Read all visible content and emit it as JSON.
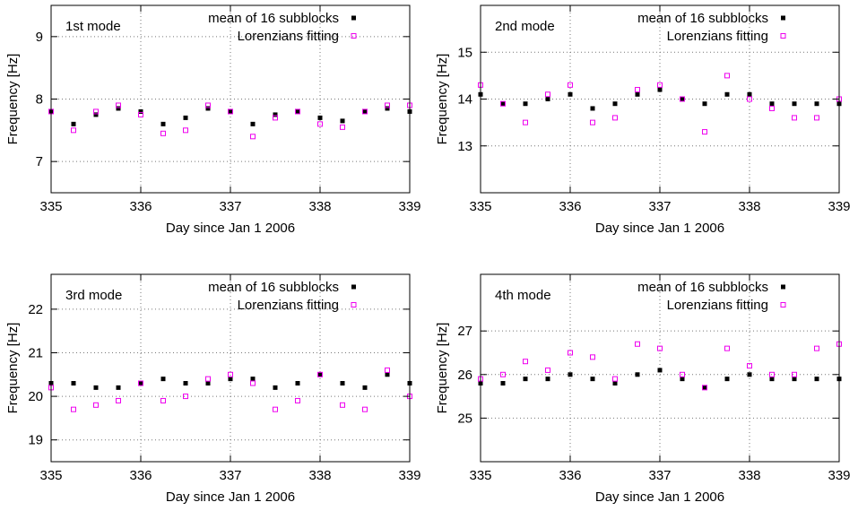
{
  "colors": {
    "mean": "#000000",
    "lorentz": "#ee00ee",
    "grid": "#777777",
    "frame": "#000000"
  },
  "chart_data": [
    {
      "type": "scatter",
      "title": "1st mode",
      "xlabel": "Day since Jan 1 2006",
      "ylabel": "Frequency [Hz]",
      "xlim": [
        335,
        339
      ],
      "ylim": [
        6.5,
        9.5
      ],
      "xticks": [
        335,
        336,
        337,
        338,
        339
      ],
      "yticks": [
        7,
        8,
        9
      ],
      "grid": true,
      "legend_position": "top-right",
      "legend": [
        "mean of 16 subblocks",
        "Lorenzians fitting"
      ],
      "series": [
        {
          "name": "mean of 16 subblocks",
          "marker": "filled-square",
          "x": [
            335.0,
            335.25,
            335.5,
            335.75,
            336.0,
            336.25,
            336.5,
            336.75,
            337.0,
            337.25,
            337.5,
            337.75,
            338.0,
            338.25,
            338.5,
            338.75,
            339.0
          ],
          "y": [
            7.8,
            7.6,
            7.75,
            7.85,
            7.8,
            7.6,
            7.7,
            7.85,
            7.8,
            7.6,
            7.75,
            7.8,
            7.7,
            7.65,
            7.8,
            7.85,
            7.8
          ]
        },
        {
          "name": "Lorenzians fitting",
          "marker": "open-square",
          "x": [
            335.0,
            335.25,
            335.5,
            335.75,
            336.0,
            336.25,
            336.5,
            336.75,
            337.0,
            337.25,
            337.5,
            337.75,
            338.0,
            338.25,
            338.5,
            338.75,
            339.0
          ],
          "y": [
            7.8,
            7.5,
            7.8,
            7.9,
            7.75,
            7.45,
            7.5,
            7.9,
            7.8,
            7.4,
            7.7,
            7.8,
            7.6,
            7.55,
            7.8,
            7.9,
            7.9
          ]
        }
      ]
    },
    {
      "type": "scatter",
      "title": "2nd mode",
      "xlabel": "Day since Jan 1 2006",
      "ylabel": "Frequency [Hz]",
      "xlim": [
        335,
        339
      ],
      "ylim": [
        12.0,
        16.0
      ],
      "xticks": [
        335,
        336,
        337,
        338,
        339
      ],
      "yticks": [
        13,
        14,
        15
      ],
      "grid": true,
      "legend_position": "top-right",
      "legend": [
        "mean of 16 subblocks",
        "Lorenzians fitting"
      ],
      "series": [
        {
          "name": "mean of 16 subblocks",
          "marker": "filled-square",
          "x": [
            335.0,
            335.25,
            335.5,
            335.75,
            336.0,
            336.25,
            336.5,
            336.75,
            337.0,
            337.25,
            337.5,
            337.75,
            338.0,
            338.25,
            338.5,
            338.75,
            339.0
          ],
          "y": [
            14.1,
            13.9,
            13.9,
            14.0,
            14.1,
            13.8,
            13.9,
            14.1,
            14.2,
            14.0,
            13.9,
            14.1,
            14.1,
            13.9,
            13.9,
            13.9,
            13.9
          ]
        },
        {
          "name": "Lorenzians fitting",
          "marker": "open-square",
          "x": [
            335.0,
            335.25,
            335.5,
            335.75,
            336.0,
            336.25,
            336.5,
            336.75,
            337.0,
            337.25,
            337.5,
            337.75,
            338.0,
            338.25,
            338.5,
            338.75,
            339.0
          ],
          "y": [
            14.3,
            13.9,
            13.5,
            14.1,
            14.3,
            13.5,
            13.6,
            14.2,
            14.3,
            14.0,
            13.3,
            14.5,
            14.0,
            13.8,
            13.6,
            13.6,
            14.0
          ]
        }
      ]
    },
    {
      "type": "scatter",
      "title": "3rd mode",
      "xlabel": "Day since Jan 1 2006",
      "ylabel": "Frequency [Hz]",
      "xlim": [
        335,
        339
      ],
      "ylim": [
        18.5,
        22.8
      ],
      "xticks": [
        335,
        336,
        337,
        338,
        339
      ],
      "yticks": [
        19,
        20,
        21,
        22
      ],
      "grid": true,
      "legend_position": "top-right",
      "legend": [
        "mean of 16 subblocks",
        "Lorenzians fitting"
      ],
      "series": [
        {
          "name": "mean of 16 subblocks",
          "marker": "filled-square",
          "x": [
            335.0,
            335.25,
            335.5,
            335.75,
            336.0,
            336.25,
            336.5,
            336.75,
            337.0,
            337.25,
            337.5,
            337.75,
            338.0,
            338.25,
            338.5,
            338.75,
            339.0
          ],
          "y": [
            20.3,
            20.3,
            20.2,
            20.2,
            20.3,
            20.4,
            20.3,
            20.3,
            20.4,
            20.4,
            20.2,
            20.3,
            20.5,
            20.3,
            20.2,
            20.5,
            20.3
          ]
        },
        {
          "name": "Lorenzians fitting",
          "marker": "open-square",
          "x": [
            335.0,
            335.25,
            335.5,
            335.75,
            336.0,
            336.25,
            336.5,
            336.75,
            337.0,
            337.25,
            337.5,
            337.75,
            338.0,
            338.25,
            338.5,
            338.75,
            339.0
          ],
          "y": [
            20.2,
            19.7,
            19.8,
            19.9,
            20.3,
            19.9,
            20.0,
            20.4,
            20.5,
            20.3,
            19.7,
            19.9,
            20.5,
            19.8,
            19.7,
            20.6,
            20.0
          ]
        }
      ]
    },
    {
      "type": "scatter",
      "title": "4th mode",
      "xlabel": "Day since Jan 1 2006",
      "ylabel": "Frequency [Hz]",
      "xlim": [
        335,
        339
      ],
      "ylim": [
        24.0,
        28.3
      ],
      "xticks": [
        335,
        336,
        337,
        338,
        339
      ],
      "yticks": [
        25,
        26,
        27
      ],
      "grid": true,
      "legend_position": "top-right",
      "legend": [
        "mean of 16 subblocks",
        "Lorenzians fitting"
      ],
      "series": [
        {
          "name": "mean of 16 subblocks",
          "marker": "filled-square",
          "x": [
            335.0,
            335.25,
            335.5,
            335.75,
            336.0,
            336.25,
            336.5,
            336.75,
            337.0,
            337.25,
            337.5,
            337.75,
            338.0,
            338.25,
            338.5,
            338.75,
            339.0
          ],
          "y": [
            25.8,
            25.8,
            25.9,
            25.9,
            26.0,
            25.9,
            25.8,
            26.0,
            26.1,
            25.9,
            25.7,
            25.9,
            26.0,
            25.9,
            25.9,
            25.9,
            25.9
          ]
        },
        {
          "name": "Lorenzians fitting",
          "marker": "open-square",
          "x": [
            335.0,
            335.25,
            335.5,
            335.75,
            336.0,
            336.25,
            336.5,
            336.75,
            337.0,
            337.25,
            337.5,
            337.75,
            338.0,
            338.25,
            338.5,
            338.75,
            339.0
          ],
          "y": [
            25.9,
            26.0,
            26.3,
            26.1,
            26.5,
            26.4,
            25.9,
            26.7,
            26.6,
            26.0,
            25.7,
            26.6,
            26.2,
            26.0,
            26.0,
            26.6,
            26.7
          ]
        }
      ]
    }
  ]
}
